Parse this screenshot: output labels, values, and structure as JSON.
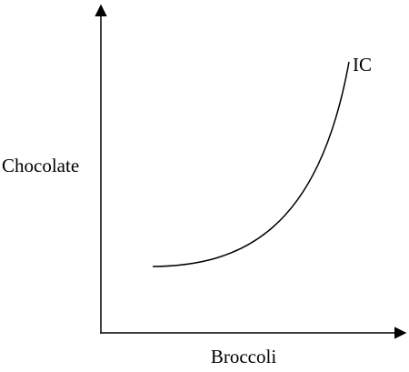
{
  "y_axis": {
    "label": "Chocolate"
  },
  "x_axis": {
    "label": "Broccoli"
  },
  "curve": {
    "label": "IC"
  }
}
